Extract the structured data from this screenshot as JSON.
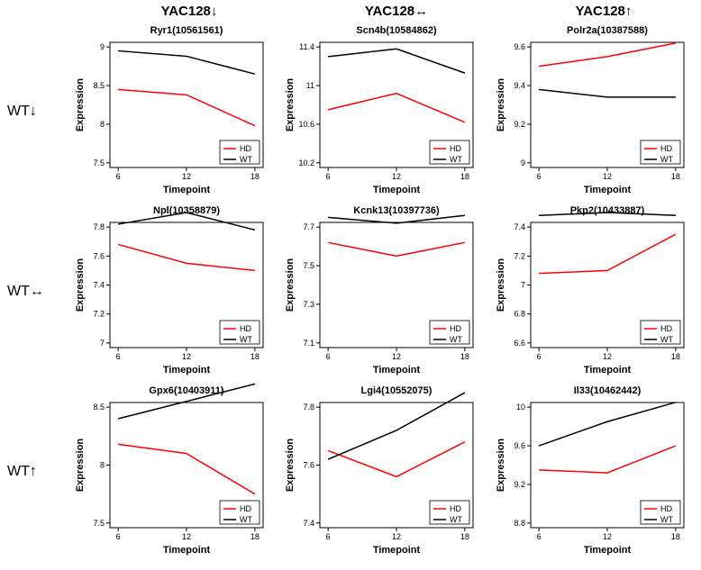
{
  "col_headers": [
    "YAC128↓",
    "YAC128↔",
    "YAC128↑"
  ],
  "row_headers": [
    "WT↓",
    "WT↔",
    "WT↑"
  ],
  "x_axis_title": "Timepoint",
  "y_axis_title": "Expression",
  "x_values": [
    6,
    12,
    18
  ],
  "legend": {
    "labels": [
      "HD",
      "WT"
    ],
    "colors": [
      "#ff0000",
      "#000000"
    ]
  },
  "colors": {
    "hd": "#ff0000",
    "wt": "#000000",
    "box": "#000000",
    "bg": "#ffffff"
  },
  "line_width": 1.5,
  "panels": [
    {
      "title": "Ryr1(10561561)",
      "ylim": [
        7.5,
        9.0
      ],
      "yticks": [
        7.5,
        8.0,
        8.5,
        9.0
      ],
      "hd": [
        8.45,
        8.38,
        7.98
      ],
      "wt": [
        8.95,
        8.88,
        8.65
      ],
      "legend_pos": "br"
    },
    {
      "title": "Scn4b(10584862)",
      "ylim": [
        10.2,
        11.4
      ],
      "yticks": [
        10.2,
        10.6,
        11.0,
        11.4
      ],
      "hd": [
        10.75,
        10.92,
        10.62
      ],
      "wt": [
        11.3,
        11.38,
        11.13
      ],
      "legend_pos": "br"
    },
    {
      "title": "Polr2a(10387588)",
      "ylim": [
        9.0,
        9.6
      ],
      "yticks": [
        9.0,
        9.2,
        9.4,
        9.6
      ],
      "hd": [
        9.5,
        9.55,
        9.62
      ],
      "wt": [
        9.38,
        9.34,
        9.34
      ],
      "legend_pos": "br"
    },
    {
      "title": "Npl(10358879)",
      "ylim": [
        7.0,
        7.8
      ],
      "yticks": [
        7.0,
        7.2,
        7.4,
        7.6,
        7.8
      ],
      "hd": [
        7.68,
        7.55,
        7.5
      ],
      "wt": [
        7.82,
        7.9,
        7.78
      ],
      "legend_pos": "br"
    },
    {
      "title": "Kcnk13(10397736)",
      "ylim": [
        7.1,
        7.7
      ],
      "yticks": [
        7.1,
        7.3,
        7.5,
        7.7
      ],
      "hd": [
        7.62,
        7.55,
        7.62
      ],
      "wt": [
        7.75,
        7.72,
        7.76
      ],
      "legend_pos": "br"
    },
    {
      "title": "Pkp2(10433887)",
      "ylim": [
        6.6,
        7.4
      ],
      "yticks": [
        6.6,
        6.8,
        7.0,
        7.2,
        7.4
      ],
      "hd": [
        7.08,
        7.1,
        7.35
      ],
      "wt": [
        7.48,
        7.5,
        7.48
      ],
      "legend_pos": "br"
    },
    {
      "title": "Gpx6(10403911)",
      "ylim": [
        7.5,
        8.5
      ],
      "yticks": [
        7.5,
        8.0,
        8.5
      ],
      "hd": [
        8.18,
        8.1,
        7.75
      ],
      "wt": [
        8.4,
        8.55,
        8.7
      ],
      "legend_pos": "br"
    },
    {
      "title": "Lgi4(10552075)",
      "ylim": [
        7.4,
        7.8
      ],
      "yticks": [
        7.4,
        7.6,
        7.8
      ],
      "hd": [
        7.65,
        7.56,
        7.68
      ],
      "wt": [
        7.62,
        7.72,
        7.85
      ],
      "legend_pos": "br"
    },
    {
      "title": "Il33(10462442)",
      "ylim": [
        8.8,
        10.0
      ],
      "yticks": [
        8.8,
        9.2,
        9.6,
        10.0
      ],
      "hd": [
        9.35,
        9.32,
        9.6
      ],
      "wt": [
        9.6,
        9.85,
        10.05
      ],
      "legend_pos": "br"
    }
  ]
}
